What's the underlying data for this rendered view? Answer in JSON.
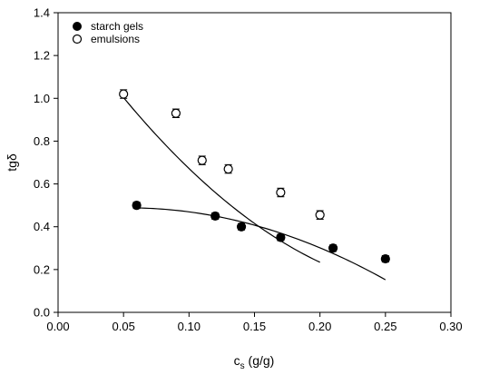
{
  "chart_data": {
    "type": "scatter",
    "title": "",
    "xlabel": {
      "main": "c",
      "sub": "s",
      "rest": " (g/g)"
    },
    "ylabel": "tgδ",
    "xlim": [
      0.0,
      0.3
    ],
    "ylim": [
      0.0,
      1.4
    ],
    "xticks": [
      "0.00",
      "0.05",
      "0.10",
      "0.15",
      "0.20",
      "0.25",
      "0.30"
    ],
    "yticks": [
      "0.0",
      "0.2",
      "0.4",
      "0.6",
      "0.8",
      "1.0",
      "1.2",
      "1.4"
    ],
    "grid": false,
    "legend_position": "top-left",
    "series": [
      {
        "name": "starch gels",
        "marker": "filled-circle",
        "color": "#000000",
        "x": [
          0.06,
          0.12,
          0.14,
          0.17,
          0.21,
          0.25
        ],
        "y": [
          0.5,
          0.45,
          0.4,
          0.35,
          0.3,
          0.25
        ],
        "error": [
          0.015,
          0.015,
          0.015,
          0.015,
          0.015,
          0.015
        ],
        "fit_curve": {
          "x_start": 0.06,
          "x_end": 0.25,
          "coefficients": [
            0.4635,
            0.93,
            -8.7
          ]
        }
      },
      {
        "name": "emulsions",
        "marker": "open-circle",
        "color": "#000000",
        "x": [
          0.05,
          0.09,
          0.11,
          0.13,
          0.17,
          0.2
        ],
        "y": [
          1.02,
          0.93,
          0.71,
          0.67,
          0.56,
          0.455
        ],
        "error": [
          0.02,
          0.02,
          0.02,
          0.02,
          0.02,
          0.02
        ],
        "fit_curve": {
          "x_start": 0.05,
          "x_end": 0.2,
          "coefficients": [
            1.41,
            -8.88,
            15.0
          ]
        }
      }
    ]
  }
}
